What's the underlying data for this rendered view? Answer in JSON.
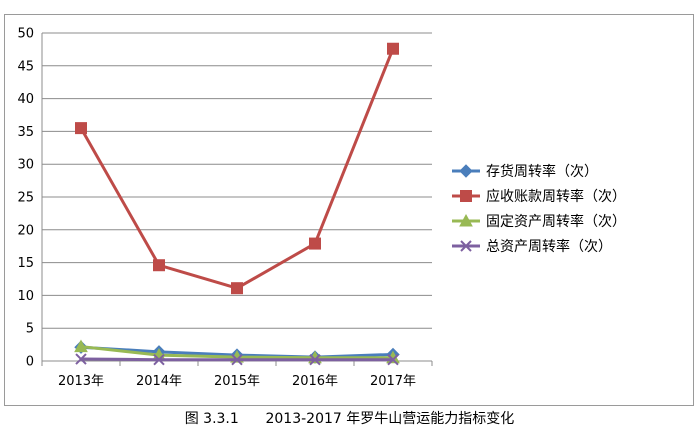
{
  "caption": "图 3.3.1      2013-2017 年罗牛山营运能力指标变化",
  "chart_data": {
    "type": "line",
    "categories": [
      "2013年",
      "2014年",
      "2015年",
      "2016年",
      "2017年"
    ],
    "ylim": [
      0,
      50
    ],
    "yticks": [
      "0",
      "5",
      "10",
      "15",
      "20",
      "25",
      "30",
      "35",
      "40",
      "45",
      "50"
    ],
    "grid": true,
    "legend_position": "right",
    "series": [
      {
        "name": "存货周转率（次）",
        "values": [
          2.1,
          1.4,
          0.9,
          0.6,
          1.0
        ],
        "color": "#4a7ebb",
        "marker": "diamond"
      },
      {
        "name": "应收账款周转率（次）",
        "values": [
          35.5,
          14.6,
          11.1,
          17.9,
          47.6
        ],
        "color": "#be4b48",
        "marker": "square"
      },
      {
        "name": "固定资产周转率（次）",
        "values": [
          2.2,
          0.9,
          0.6,
          0.5,
          0.5
        ],
        "color": "#98b954",
        "marker": "triangle"
      },
      {
        "name": "总资产周转率（次）",
        "values": [
          0.3,
          0.2,
          0.2,
          0.2,
          0.2
        ],
        "color": "#7d60a0",
        "marker": "x"
      }
    ]
  }
}
